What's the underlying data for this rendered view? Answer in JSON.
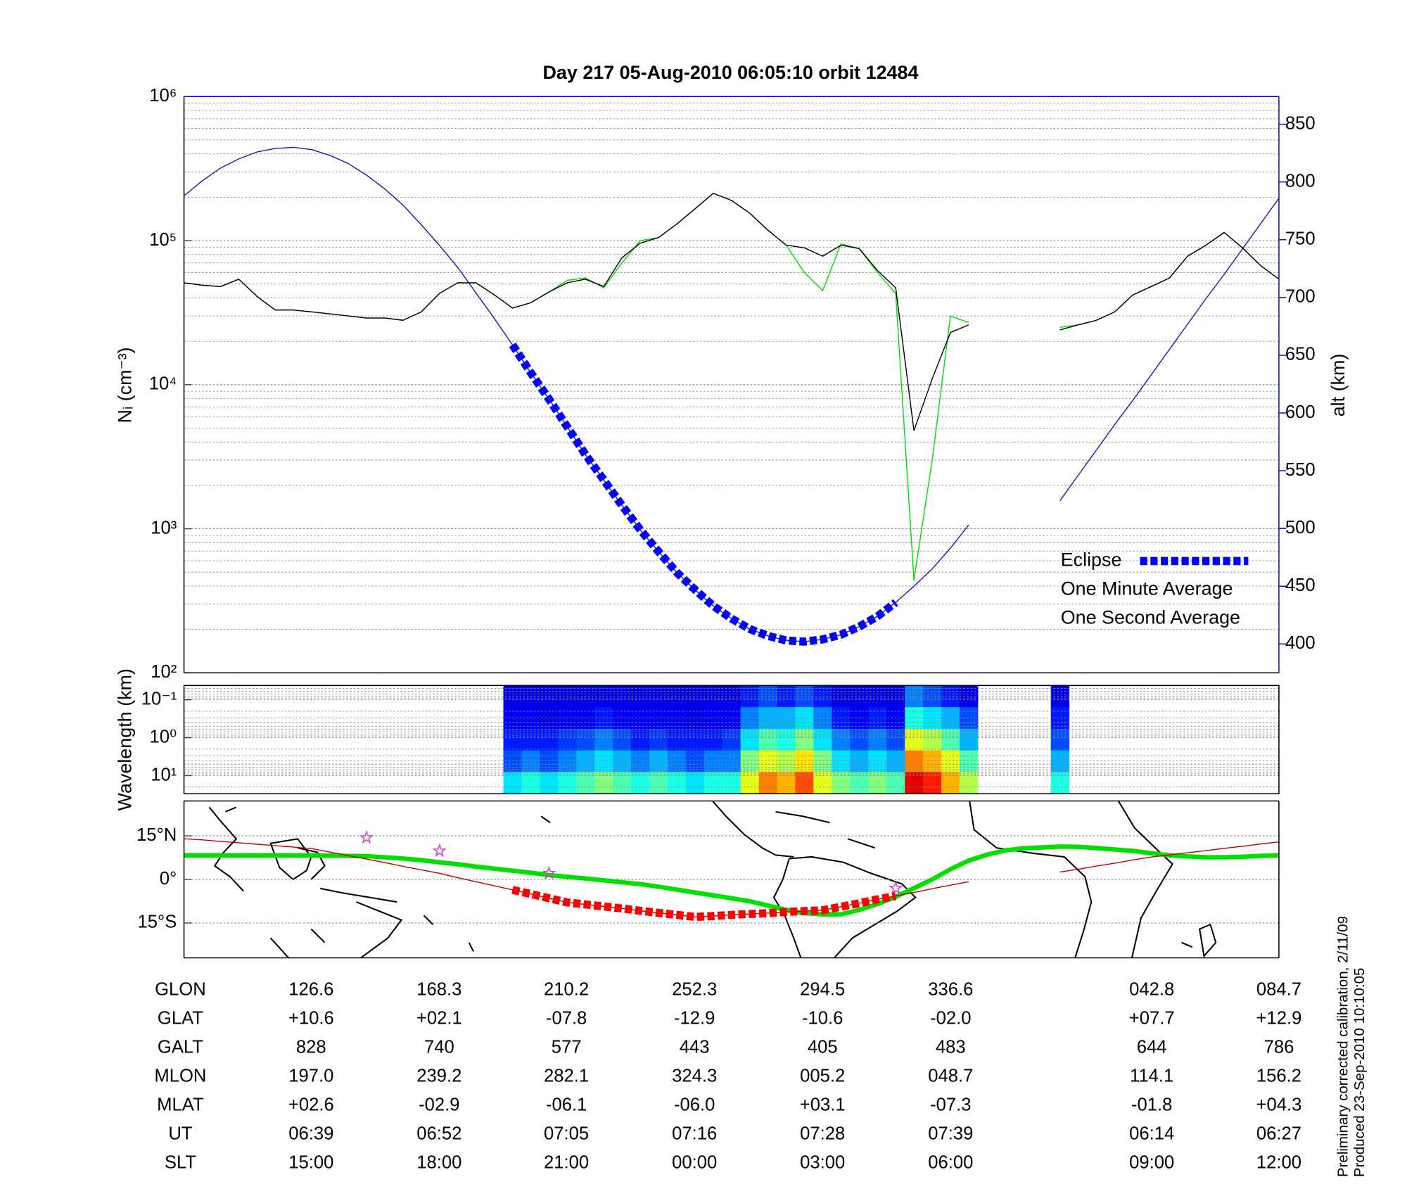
{
  "chart_data": [
    {
      "type": "line",
      "title": "Day 217  05-Aug-2010 06:05:10   orbit 12484",
      "y_label": "Nᵢ (cm⁻³)",
      "y2_label": "alt (km)",
      "y2_color": "#1010c8",
      "log_y": true,
      "grid": true,
      "minor_grid": true,
      "legend": "lower right",
      "ylim": [
        100,
        1000000
      ],
      "yticks": [
        {
          "value": 100,
          "label": "10²"
        },
        {
          "value": 1000,
          "label": "10³"
        },
        {
          "value": 10000,
          "label": "10⁴"
        },
        {
          "value": 100000,
          "label": "10⁵"
        },
        {
          "value": 1000000,
          "label": "10⁶"
        }
      ],
      "y2lim": [
        375,
        874
      ],
      "y2ticks": [
        400,
        450,
        500,
        550,
        600,
        650,
        700,
        750,
        800,
        850
      ],
      "series": [
        {
          "name": "Eclipse",
          "color": "#0000ff",
          "axis": "y2",
          "style": "thick-dashed",
          "values": [
            null,
            null,
            null,
            null,
            null,
            null,
            null,
            null,
            null,
            null,
            null,
            null,
            null,
            null,
            null,
            null,
            null,
            null,
            659,
            635,
            612,
            588,
            564,
            542,
            520,
            499,
            480,
            462,
            447,
            433,
            422,
            413,
            407,
            403,
            402,
            404,
            408,
            415,
            424,
            436,
            null,
            null,
            null,
            null,
            null,
            null,
            null,
            null,
            null,
            null,
            null,
            null,
            null,
            null,
            null,
            null,
            null,
            null,
            null,
            null,
            null
          ]
        },
        {
          "name": "One Minute Average",
          "color": "#000000",
          "style": "thin",
          "values": [
            51000,
            49000,
            48000,
            54000,
            41000,
            33000,
            33000,
            32000,
            31000,
            30000,
            29000,
            29000,
            28000,
            32000,
            43000,
            51000,
            51000,
            42000,
            34000,
            37000,
            44000,
            51000,
            54000,
            48000,
            76000,
            96000,
            105000,
            130000,
            166000,
            213000,
            190000,
            155000,
            118000,
            93000,
            89000,
            78000,
            93000,
            88000,
            62000,
            47000,
            4800,
            11000,
            23000,
            26000,
            null,
            null,
            null,
            null,
            24000,
            26000,
            28000,
            32000,
            42000,
            48000,
            55000,
            78000,
            93000,
            114000,
            89000,
            67000,
            54000
          ]
        },
        {
          "name": "One Second Average",
          "color": "#00dd00",
          "style": "thin",
          "values": [
            51000,
            49000,
            48000,
            54000,
            41000,
            33000,
            33000,
            32000,
            31000,
            30000,
            29000,
            29000,
            28000,
            32000,
            43000,
            51000,
            51000,
            42000,
            34000,
            37000,
            44000,
            53000,
            55000,
            47000,
            70000,
            100000,
            105000,
            130000,
            166000,
            213000,
            190000,
            155000,
            118000,
            93000,
            60000,
            45000,
            95000,
            88000,
            60000,
            43000,
            440,
            3000,
            30000,
            27000,
            null,
            null,
            null,
            null,
            25000,
            26000,
            28000,
            32000,
            42000,
            48000,
            55000,
            78000,
            93000,
            114000,
            89000,
            67000,
            54000
          ]
        },
        {
          "color": "#1a1aa8",
          "axis": "y2",
          "style": "thin",
          "values": [
            788,
            801,
            812,
            820,
            826,
            829,
            830,
            828,
            823,
            816,
            806,
            794,
            780,
            763,
            745,
            726,
            704,
            682,
            659,
            635,
            612,
            588,
            564,
            542,
            520,
            499,
            480,
            462,
            447,
            433,
            422,
            413,
            407,
            403,
            402,
            404,
            408,
            415,
            424,
            436,
            450,
            465,
            483,
            503,
            null,
            null,
            null,
            null,
            524,
            546,
            568,
            590,
            611,
            633,
            655,
            677,
            699,
            720,
            742,
            764,
            786
          ]
        }
      ]
    },
    {
      "type": "heatmap",
      "y_label": "Wavelength (km)",
      "log_y": true,
      "minor_grid": true,
      "colormap": "jet",
      "ylim": [
        30,
        0.042
      ],
      "yticks": [
        {
          "value": 0.1,
          "label": "10⁻¹"
        },
        {
          "value": 1,
          "label": "10⁰"
        },
        {
          "value": 10,
          "label": "10¹"
        }
      ],
      "z": [
        null,
        null,
        null,
        null,
        null,
        null,
        null,
        null,
        null,
        null,
        null,
        null,
        null,
        null,
        null,
        null,
        null,
        null,
        [
          0.1,
          0.12,
          0.15,
          0.2,
          0.35
        ],
        [
          0.1,
          0.12,
          0.15,
          0.25,
          0.4
        ],
        [
          0.1,
          0.1,
          0.15,
          0.2,
          0.35
        ],
        [
          0.1,
          0.12,
          0.18,
          0.25,
          0.4
        ],
        [
          0.1,
          0.12,
          0.2,
          0.3,
          0.45
        ],
        [
          0.1,
          0.15,
          0.25,
          0.35,
          0.5
        ],
        [
          0.1,
          0.12,
          0.2,
          0.3,
          0.45
        ],
        [
          0.1,
          0.12,
          0.15,
          0.25,
          0.4
        ],
        [
          0.1,
          0.12,
          0.18,
          0.3,
          0.45
        ],
        [
          0.1,
          0.12,
          0.15,
          0.25,
          0.4
        ],
        [
          0.1,
          0.1,
          0.15,
          0.2,
          0.35
        ],
        [
          0.1,
          0.12,
          0.15,
          0.25,
          0.4
        ],
        [
          0.1,
          0.12,
          0.18,
          0.25,
          0.4
        ],
        [
          0.15,
          0.25,
          0.35,
          0.5,
          0.6
        ],
        [
          0.2,
          0.3,
          0.45,
          0.6,
          0.75
        ],
        [
          0.15,
          0.3,
          0.4,
          0.55,
          0.7
        ],
        [
          0.2,
          0.35,
          0.5,
          0.65,
          0.8
        ],
        [
          0.15,
          0.25,
          0.35,
          0.5,
          0.6
        ],
        [
          0.1,
          0.15,
          0.25,
          0.35,
          0.5
        ],
        [
          0.1,
          0.12,
          0.2,
          0.3,
          0.45
        ],
        [
          0.1,
          0.15,
          0.25,
          0.35,
          0.5
        ],
        [
          0.1,
          0.12,
          0.2,
          0.3,
          0.45
        ],
        [
          0.25,
          0.4,
          0.6,
          0.75,
          0.9
        ],
        [
          0.2,
          0.35,
          0.55,
          0.7,
          0.85
        ],
        [
          0.15,
          0.3,
          0.45,
          0.6,
          0.7
        ],
        [
          0.1,
          0.2,
          0.3,
          0.45,
          0.55
        ],
        null,
        null,
        null,
        null,
        [
          0.1,
          0.15,
          0.2,
          0.3,
          0.4
        ],
        null,
        null,
        null,
        null,
        null,
        null,
        null,
        null,
        null,
        null,
        null,
        null
      ]
    },
    {
      "type": "line",
      "grid": true,
      "ylim": [
        -27,
        27
      ],
      "yticks": [
        {
          "value": 15,
          "label": "15°N"
        },
        {
          "value": 0,
          "label": "0°"
        },
        {
          "value": -15,
          "label": "15°S"
        }
      ],
      "series": [
        {
          "color": "#00e000",
          "style": "thick",
          "values": [
            8.3,
            8.3,
            8.3,
            8.3,
            8.3,
            8.3,
            8.3,
            8.2,
            8.2,
            8.1,
            8,
            7.6,
            7.2,
            6.6,
            5.9,
            5.2,
            4.4,
            3.7,
            3,
            2.3,
            1.5,
            0.9,
            0.3,
            -0.3,
            -1,
            -1.6,
            -2.5,
            -3.5,
            -4.5,
            -5.5,
            -6.5,
            -7.5,
            -9,
            -10.5,
            -11.6,
            -12,
            -12,
            -10.5,
            -8.5,
            -6,
            -3,
            0,
            3.5,
            6.5,
            8.5,
            10,
            10.7,
            11,
            11.3,
            11.2,
            10.8,
            10.3,
            9.8,
            9,
            8.3,
            7.9,
            7.6,
            7.6,
            7.8,
            8.1,
            8.3
          ]
        },
        {
          "color": "#c00000",
          "style": "thin",
          "values": [
            14,
            13.6,
            13.1,
            12.6,
            12.1,
            11.6,
            11.1,
            10.6,
            9.4,
            8.2,
            7,
            5.8,
            4.5,
            3.3,
            2.1,
            0.6,
            -0.8,
            -2.2,
            -3.6,
            -5,
            -6.5,
            -7.9,
            -8.6,
            -9.3,
            -10,
            -10.8,
            -11.5,
            -12.2,
            -12.9,
            -12.6,
            -12.2,
            -11.9,
            -11.6,
            -11.2,
            -10.9,
            -10.6,
            -9.4,
            -8.2,
            -6.9,
            -5.7,
            -4.5,
            -3.2,
            -2,
            -0.8,
            null,
            null,
            null,
            null,
            2.5,
            3.5,
            4.6,
            5.6,
            6.7,
            7.7,
            8.4,
            9.2,
            9.9,
            10.7,
            11.4,
            12.2,
            12.9
          ]
        },
        {
          "color": "#ff0000",
          "style": "thick-dashed",
          "values": [
            null,
            null,
            null,
            null,
            null,
            null,
            null,
            null,
            null,
            null,
            null,
            null,
            null,
            null,
            null,
            null,
            null,
            null,
            -3.6,
            -5,
            -6.5,
            -7.9,
            -8.6,
            -9.3,
            -10,
            -10.8,
            -11.5,
            -12.2,
            -12.9,
            -12.6,
            -12.2,
            -11.9,
            -11.6,
            -11.2,
            -10.9,
            -10.6,
            -9.4,
            -8.2,
            -6.9,
            -5.7,
            null,
            null,
            null,
            null,
            null,
            null,
            null,
            null,
            null,
            null,
            null,
            null,
            null,
            null,
            null,
            null,
            null,
            null,
            null,
            null,
            null
          ]
        },
        {
          "color": "#d040d0",
          "style": "star",
          "values": [
            null,
            null,
            null,
            null,
            null,
            null,
            null,
            null,
            null,
            null,
            14.4,
            null,
            null,
            null,
            9.8,
            null,
            null,
            null,
            null,
            null,
            2.1,
            null,
            null,
            null,
            null,
            null,
            null,
            null,
            null,
            null,
            null,
            null,
            null,
            null,
            null,
            null,
            null,
            null,
            null,
            -3,
            null,
            null,
            null,
            null,
            null,
            null,
            null,
            null,
            null,
            null,
            null,
            null,
            null,
            null,
            null,
            null,
            null,
            null,
            null,
            null,
            null
          ]
        }
      ]
    }
  ],
  "table": {
    "rows": [
      [
        "GLON",
        "126.6",
        "168.3",
        "210.2",
        "252.3",
        "294.5",
        "336.6",
        "042.8",
        "084.7"
      ],
      [
        "GLAT",
        "+10.6",
        "+02.1",
        "-07.8",
        "-12.9",
        "-10.6",
        "-02.0",
        "+07.7",
        "+12.9"
      ],
      [
        "GALT",
        "828",
        "740",
        "577",
        "443",
        "405",
        "483",
        "644",
        "786"
      ],
      [
        "MLON",
        "197.0",
        "239.2",
        "282.1",
        "324.3",
        "005.2",
        "048.7",
        "114.1",
        "156.2"
      ],
      [
        "MLAT",
        "+02.6",
        "-02.9",
        "-06.1",
        "-06.0",
        "+03.1",
        "-07.3",
        "-01.8",
        "+04.3"
      ],
      [
        "UT",
        "06:39",
        "06:52",
        "07:05",
        "07:16",
        "07:28",
        "07:39",
        "06:14",
        "06:27"
      ],
      [
        "SLT",
        "15:00",
        "18:00",
        "21:00",
        "00:00",
        "03:00",
        "06:00",
        "09:00",
        "12:00"
      ]
    ]
  },
  "notes": [
    "Preliminary corrected calibration, 2/11/09",
    "Produced 23-Sep-2010 10:10:05"
  ]
}
